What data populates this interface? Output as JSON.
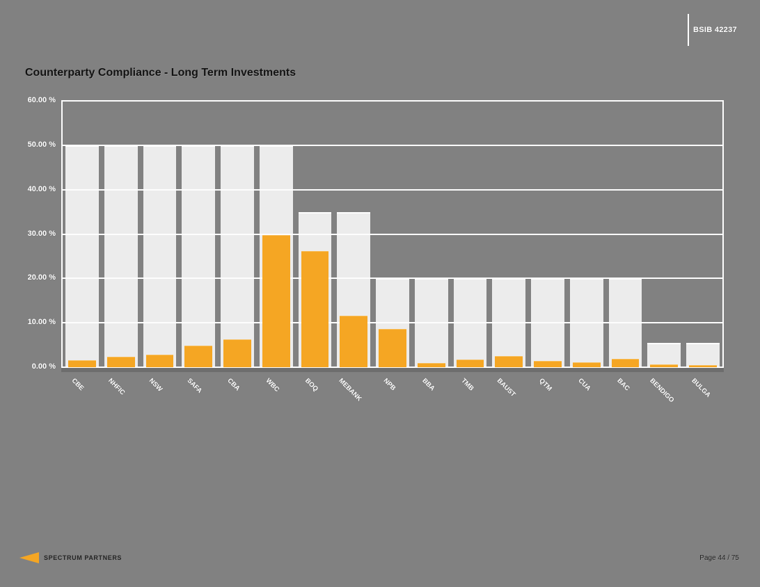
{
  "page": {
    "title": "Counterparty Compliance - Long Term Investments",
    "header_right": "BSIB 42237",
    "footer": {
      "brand": "SPECTRUM PARTNERS",
      "page_label": "Page 44 / 75"
    }
  },
  "colors": {
    "background": "#818181",
    "bar_orange": "#F5A623",
    "limit_gray": "#ECECEC",
    "grid_white": "#FDFDFD",
    "axis_strip": "#6D6D6D",
    "title_text": "#121212",
    "axis_label_text": "#FFFFFF"
  },
  "chart_data": {
    "type": "bar",
    "title": "Counterparty Compliance - Long Term Investments",
    "xlabel": "",
    "ylabel": "",
    "ylim": [
      0,
      60
    ],
    "grid": true,
    "legend": "none",
    "categories": [
      "CBE",
      "NHFIC",
      "NSW",
      "SAFA",
      "CBA",
      "WBC",
      "BOQ",
      "MEBANK",
      "NPB",
      "BBA",
      "TMB",
      "BAUST",
      "QTM",
      "CUA",
      "BAC",
      "BENDIGO",
      "BULGA"
    ],
    "series": [
      {
        "name": "limit",
        "color": "#ECECEC",
        "values": [
          50,
          50,
          50,
          50,
          50,
          50,
          35,
          35,
          20,
          20,
          20,
          20,
          20,
          20,
          20,
          5.5,
          5.5
        ]
      },
      {
        "name": "value",
        "color": "#F5A623",
        "values": [
          1.5,
          2.3,
          2.9,
          4.9,
          6.3,
          29.7,
          26.2,
          11.6,
          8.6,
          0.9,
          1.7,
          2.5,
          1.4,
          1.1,
          1.9,
          0.7,
          0.4
        ]
      }
    ],
    "y_ticks": [
      {
        "value": 60,
        "label": "60.00 %"
      },
      {
        "value": 50,
        "label": "50.00 %"
      },
      {
        "value": 40,
        "label": "40.00 %"
      },
      {
        "value": 30,
        "label": "30.00 %"
      },
      {
        "value": 20,
        "label": "20.00 %"
      },
      {
        "value": 10,
        "label": "10.00 %"
      },
      {
        "value": 0,
        "label": "0.00 %"
      }
    ]
  }
}
